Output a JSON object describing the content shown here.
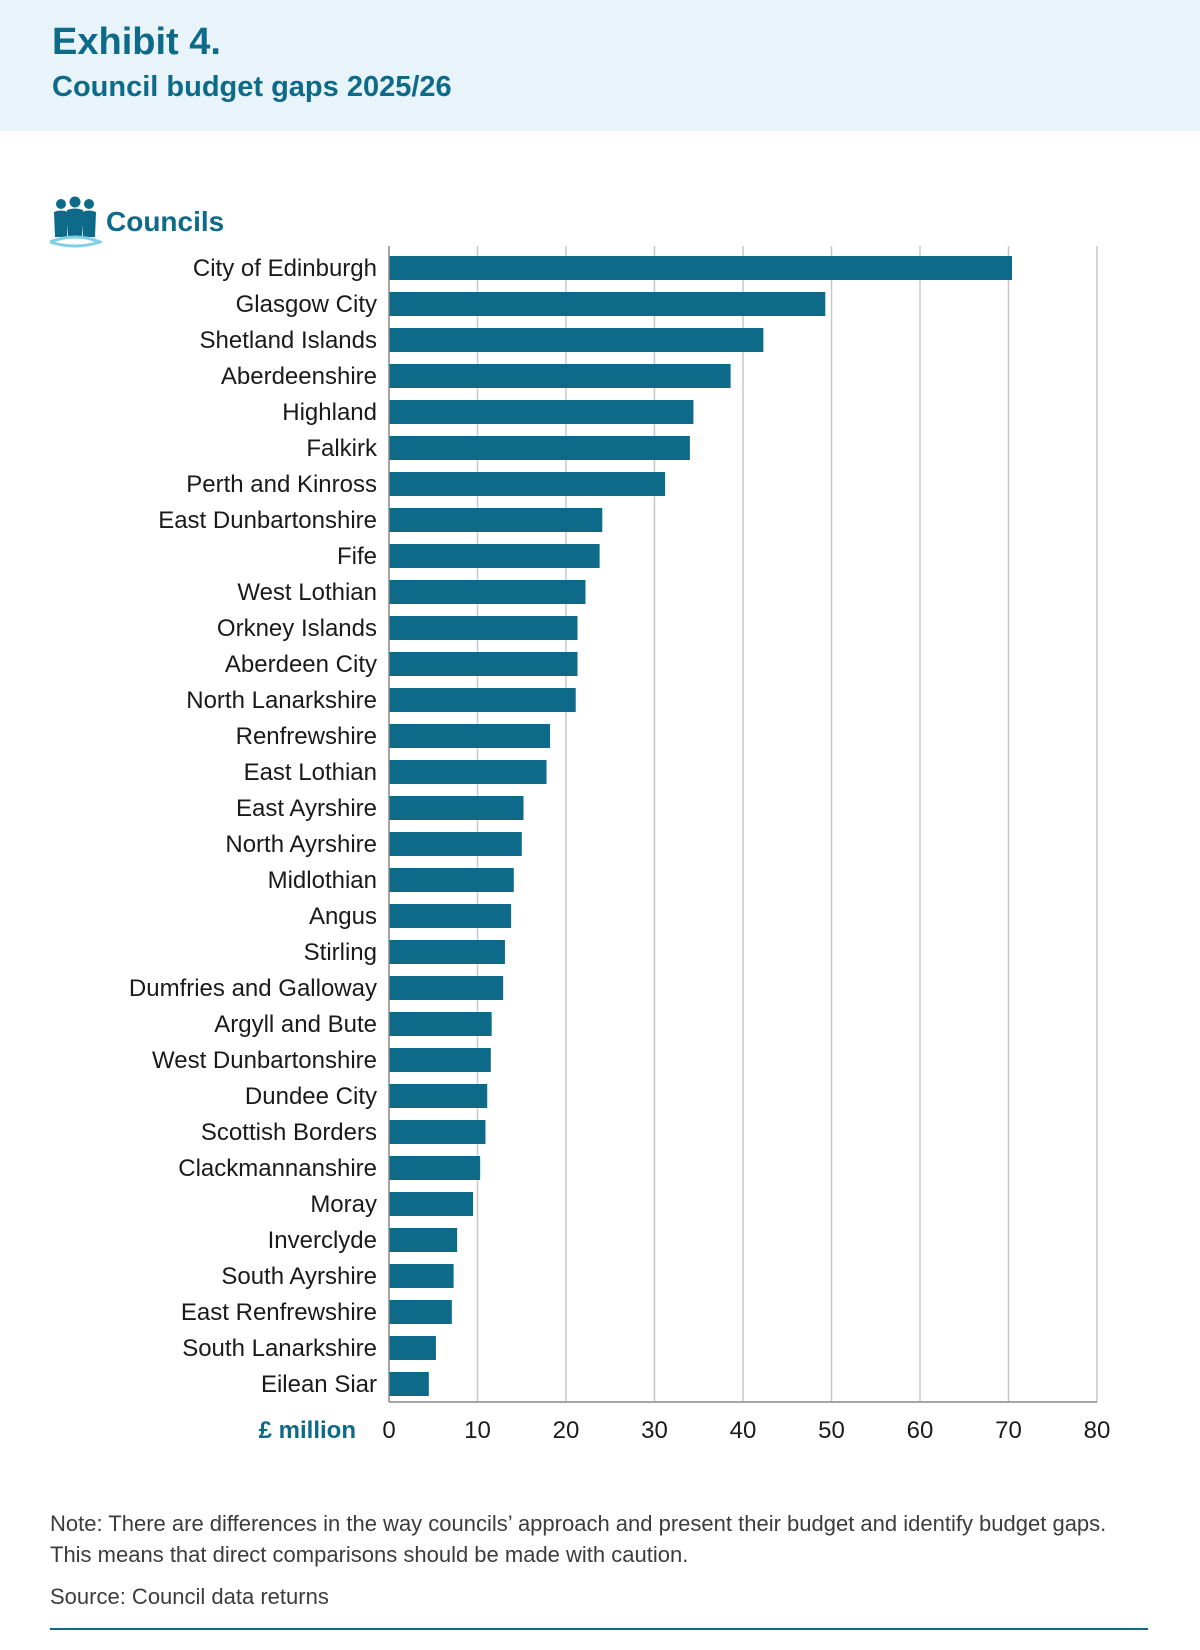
{
  "header": {
    "exhibit": "Exhibit 4.",
    "title": "Council budget gaps 2025/26"
  },
  "legend": {
    "label": "Councils",
    "icon": "people-group-icon"
  },
  "colors": {
    "bar": "#0d6a89",
    "accent": "#0d6a89",
    "header_bg": "#e8f4f9",
    "grid": "#c8c8c8",
    "text": "#1a1a1a"
  },
  "chart_data": {
    "type": "bar",
    "orientation": "horizontal",
    "categories": [
      "City of Edinburgh",
      "Glasgow City",
      "Shetland Islands",
      "Aberdeenshire",
      "Highland",
      "Falkirk",
      "Perth and Kinross",
      "East Dunbartonshire",
      "Fife",
      "West Lothian",
      "Orkney Islands",
      "Aberdeen City",
      "North Lanarkshire",
      "Renfrewshire",
      "East Lothian",
      "East Ayrshire",
      "North Ayrshire",
      "Midlothian",
      "Angus",
      "Stirling",
      "Dumfries and Galloway",
      "Argyll and Bute",
      "West Dunbartonshire",
      "Dundee City",
      "Scottish Borders",
      "Clackmannanshire",
      "Moray",
      "Inverclyde",
      "South Ayrshire",
      "East Renfrewshire",
      "South Lanarkshire",
      "Eilean Siar"
    ],
    "values": [
      70.4,
      49.3,
      42.3,
      38.6,
      34.4,
      34.0,
      31.2,
      24.1,
      23.8,
      22.2,
      21.3,
      21.3,
      21.1,
      18.2,
      17.8,
      15.2,
      15.0,
      14.1,
      13.8,
      13.1,
      12.9,
      11.6,
      11.5,
      11.1,
      10.9,
      10.3,
      9.5,
      7.7,
      7.3,
      7.1,
      5.3,
      4.5
    ],
    "xlabel": "£ million",
    "xlim": [
      0,
      80
    ],
    "xticks": [
      0,
      10,
      20,
      30,
      40,
      50,
      60,
      70,
      80
    ],
    "grid": "vertical"
  },
  "note": "Note: There are differences in the way councils’ approach and present their budget and identify budget gaps. This means that direct comparisons should be made with caution.",
  "source": "Source: Council data returns"
}
